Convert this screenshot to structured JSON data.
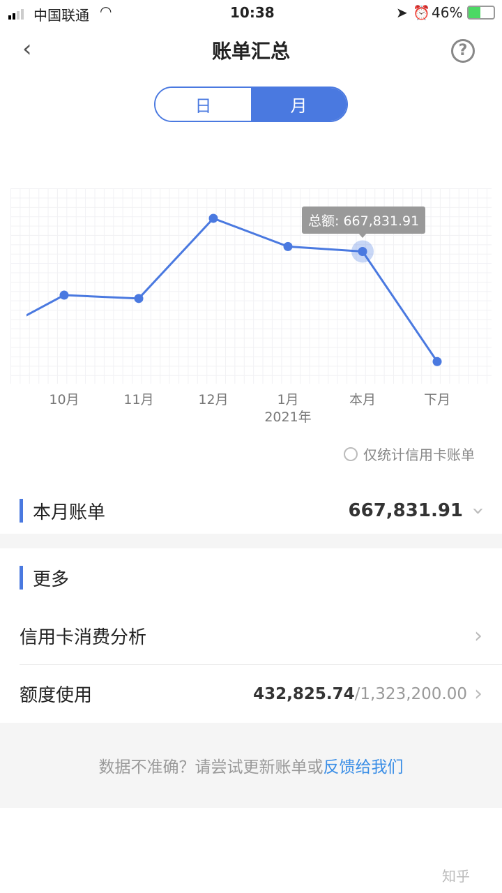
{
  "status_bar": {
    "carrier": "中国联通",
    "time": "10:38",
    "battery": "46%"
  },
  "header": {
    "title": "账单汇总",
    "back_icon": "chevron-left-icon",
    "help_icon": "question-circle-icon"
  },
  "segment": {
    "day": "日",
    "month": "月",
    "selected": "月"
  },
  "chart_data": {
    "type": "line",
    "categories": [
      "",
      "10月",
      "11月",
      "12月",
      "1月",
      "本月",
      "下月"
    ],
    "year_label": "2021年",
    "series": [
      {
        "values": [
          241000,
          445000,
          428000,
          837000,
          693000,
          667831.91,
          106000
        ]
      }
    ],
    "ylim": [
      0,
      990000
    ],
    "grid": true,
    "tooltip": {
      "label": "总额: 667,831.91",
      "category": "本月"
    },
    "color": "#4a79e0"
  },
  "filter": {
    "label": "仅统计信用卡账单",
    "checked": false
  },
  "this_month": {
    "label": "本月账单",
    "value": "667,831.91"
  },
  "more": {
    "title": "更多",
    "items": [
      {
        "label": "信用卡消费分析"
      },
      {
        "label": "额度使用",
        "used": "432,825.74",
        "total": "/1,323,200.00"
      }
    ]
  },
  "footer": {
    "text": "数据不准确？请尝试更新账单或",
    "link": "反馈给我们"
  },
  "watermark": "知乎"
}
